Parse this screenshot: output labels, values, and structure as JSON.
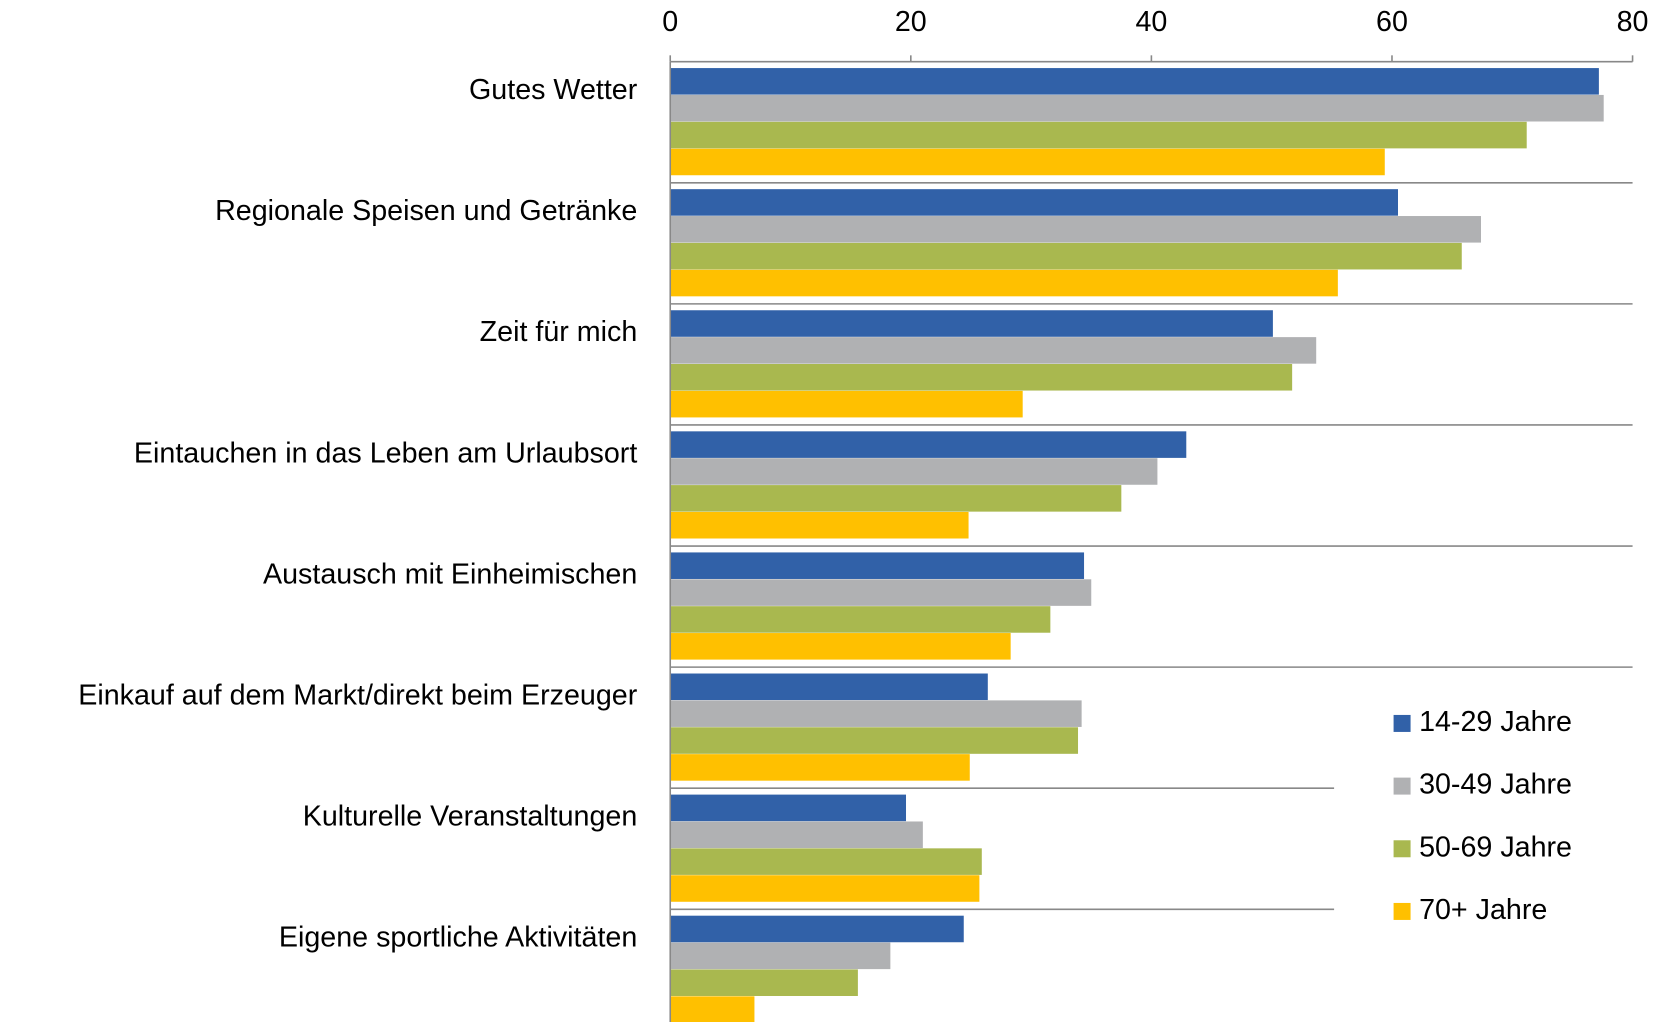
{
  "chart_data": {
    "type": "barh",
    "categories": [
      "Gutes Wetter",
      "Regionale Speisen und Getränke",
      "Zeit für mich",
      "Eintauchen in das Leben am Urlaubsort",
      "Austausch mit Einheimischen",
      "Einkauf auf dem Markt/direkt beim Erzeuger",
      "Kulturelle Veranstaltungen",
      "Eigene sportliche Aktivitäten"
    ],
    "series": [
      {
        "name": "14-29 Jahre",
        "color": "#3161a8",
        "values": [
          77.2,
          60.5,
          50.1,
          42.9,
          34.4,
          26.4,
          19.6,
          24.4
        ]
      },
      {
        "name": "30-49 Jahre",
        "color": "#b0b1b3",
        "values": [
          77.6,
          67.4,
          53.7,
          40.5,
          35.0,
          34.2,
          21.0,
          18.3
        ]
      },
      {
        "name": "50-69 Jahre",
        "color": "#a9b84f",
        "values": [
          71.2,
          65.8,
          51.7,
          37.5,
          31.6,
          33.9,
          25.9,
          15.6
        ]
      },
      {
        "name": "70+ Jahre",
        "color": "#ffc000",
        "values": [
          59.4,
          55.5,
          29.3,
          24.8,
          28.3,
          24.9,
          25.7,
          7.0
        ]
      }
    ],
    "xlim": [
      0,
      80
    ],
    "xticks": [
      0,
      20,
      40,
      60,
      80
    ],
    "legend": "right"
  }
}
